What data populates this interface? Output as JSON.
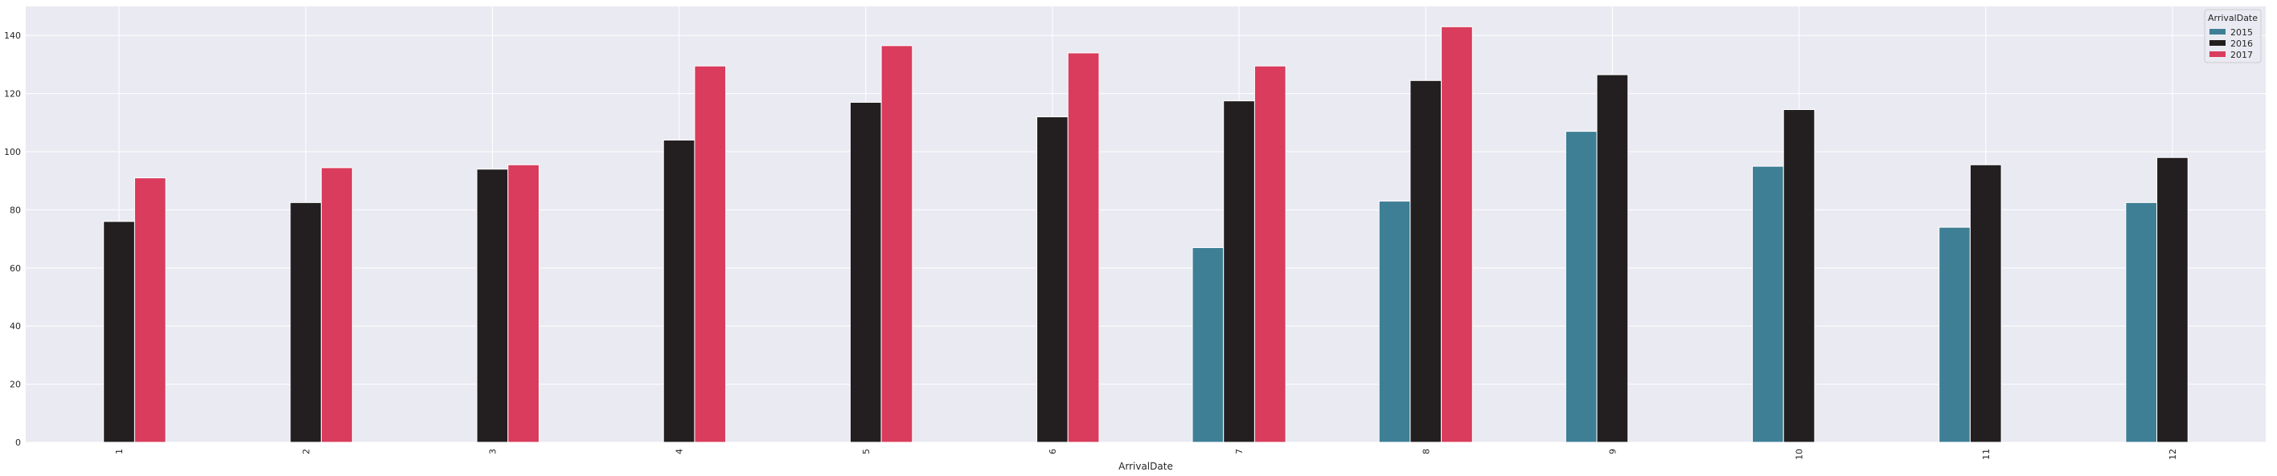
{
  "chart_data": {
    "type": "bar",
    "xlabel": "ArrivalDate",
    "ylabel": "",
    "categories": [
      "1",
      "2",
      "3",
      "4",
      "5",
      "6",
      "7",
      "8",
      "9",
      "10",
      "11",
      "12"
    ],
    "ylim": [
      0,
      150
    ],
    "yticks": [
      0,
      20,
      40,
      60,
      80,
      100,
      120,
      140
    ],
    "grid": true,
    "legend": {
      "title": "ArrivalDate",
      "placement": "top-right"
    },
    "series": [
      {
        "name": "2015",
        "color": "#3e7f95",
        "values": [
          null,
          null,
          null,
          null,
          null,
          null,
          67,
          83,
          107,
          95,
          74,
          82.5
        ]
      },
      {
        "name": "2016",
        "color": "#231f20",
        "values": [
          76,
          82.5,
          94,
          104,
          117,
          112,
          117.5,
          124.5,
          126.5,
          114.5,
          95.5,
          98
        ]
      },
      {
        "name": "2017",
        "color": "#d93c5c",
        "values": [
          91,
          94.5,
          95.5,
          129.5,
          136.5,
          134,
          129.5,
          143,
          null,
          null,
          null,
          null
        ]
      }
    ]
  }
}
